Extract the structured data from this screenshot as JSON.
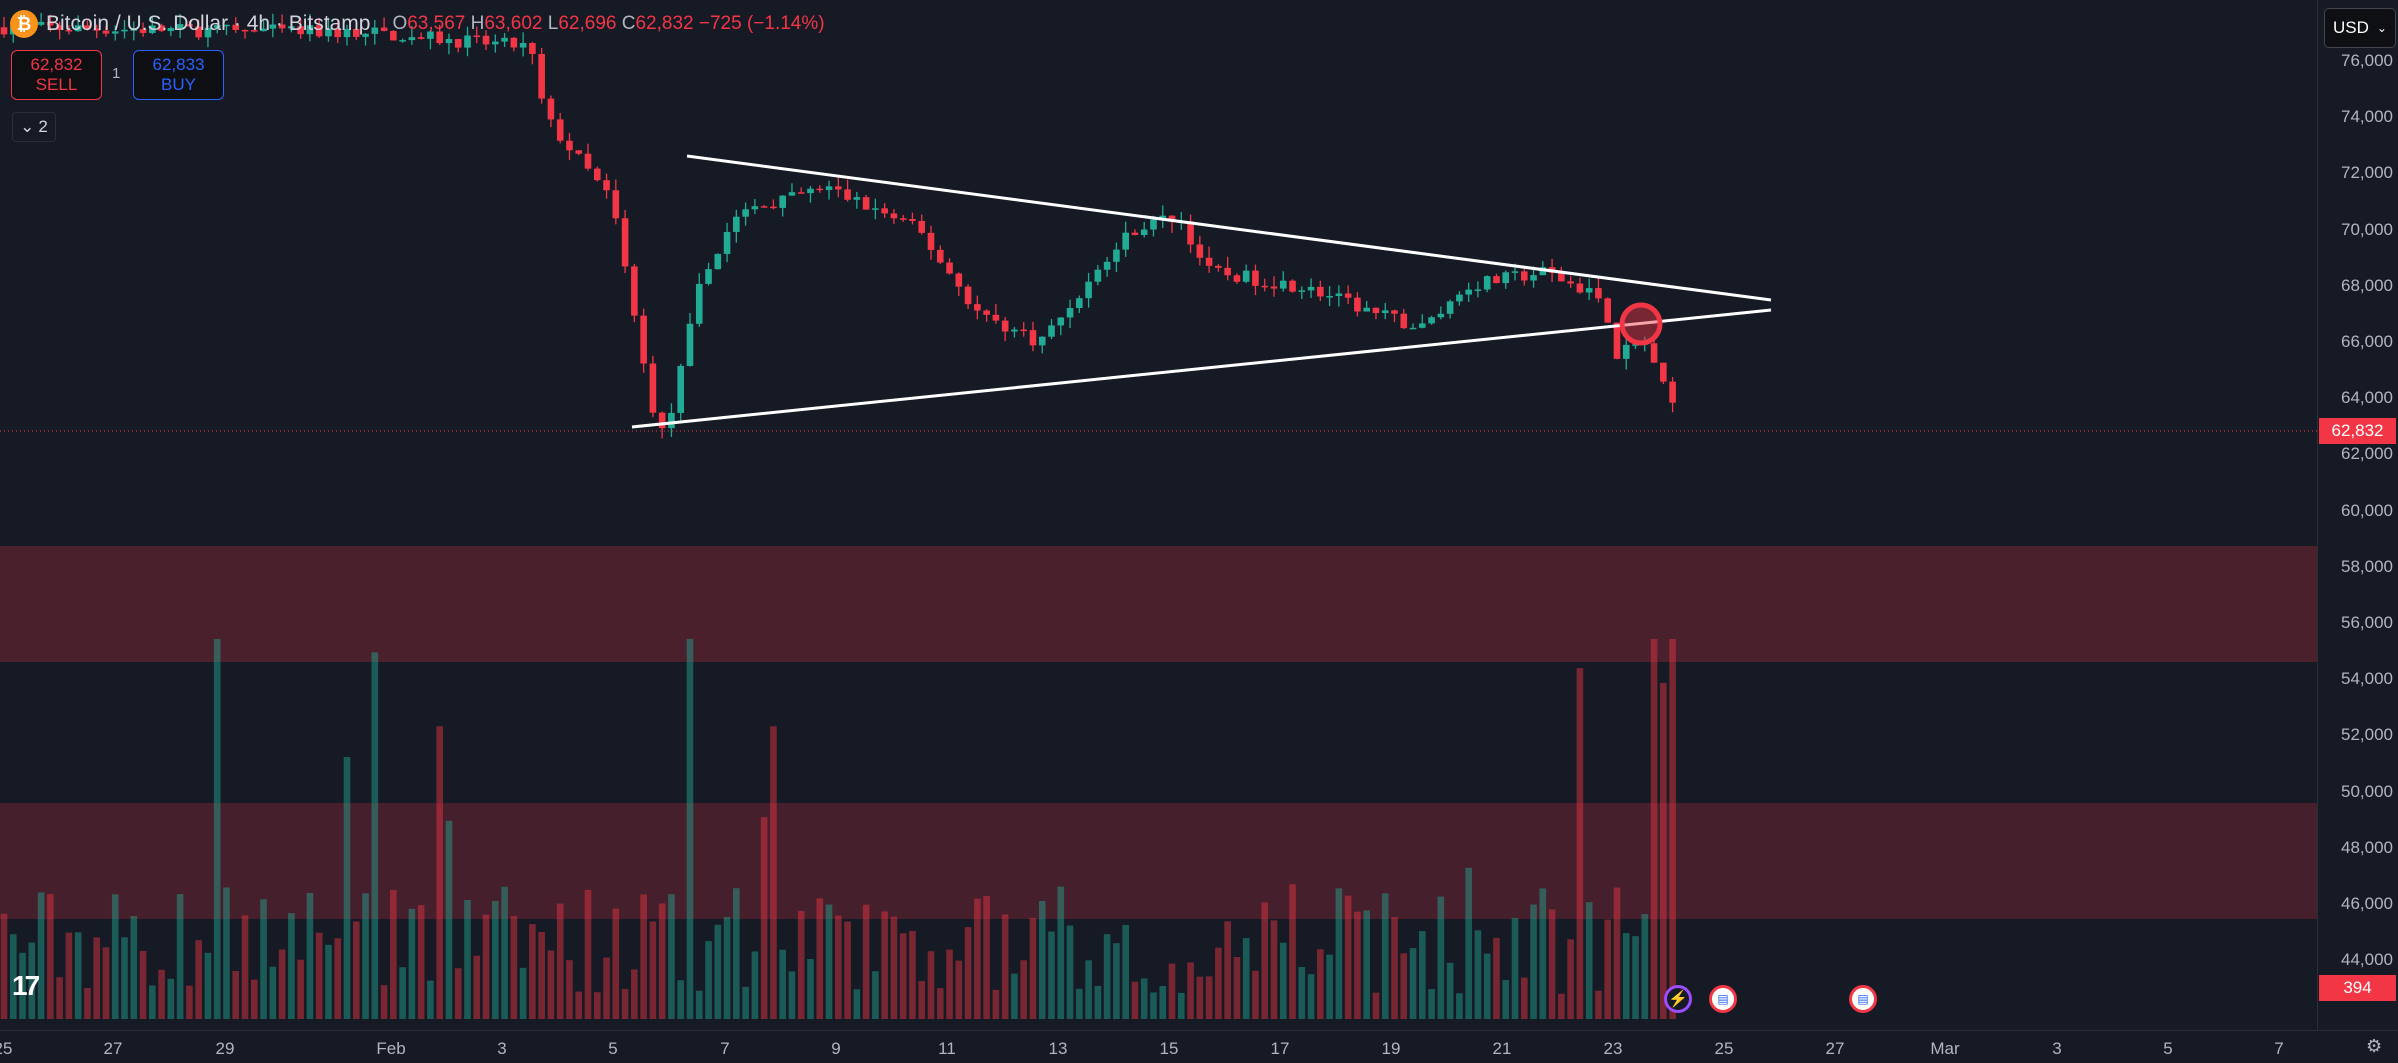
{
  "header": {
    "symbol_icon": "bitcoin-icon",
    "title": "Bitcoin / U.S. Dollar · 4h · Bitstamp",
    "open_label": "O",
    "open": "63,567",
    "high_label": "H",
    "high": "63,602",
    "low_label": "L",
    "low": "62,696",
    "close_label": "C",
    "close": "62,832",
    "change": "−725 (−1.14%)"
  },
  "trade": {
    "sell_price": "62,832",
    "sell_label": "SELL",
    "spread": "1",
    "buy_price": "62,833",
    "buy_label": "BUY"
  },
  "indicators_collapse": {
    "count": "2"
  },
  "currency": "USD",
  "price_axis": [
    "76,000",
    "74,000",
    "72,000",
    "70,000",
    "68,000",
    "66,000",
    "64,000",
    "62,000",
    "60,000",
    "58,000",
    "56,000",
    "54,000",
    "52,000",
    "50,000",
    "48,000",
    "46,000",
    "44,000"
  ],
  "last_price_label": "62,832",
  "volume_label": "394",
  "time_axis": [
    "25",
    "27",
    "29",
    "Feb",
    "3",
    "5",
    "7",
    "9",
    "11",
    "13",
    "15",
    "17",
    "19",
    "21",
    "23",
    "25",
    "27",
    "Mar",
    "3",
    "5",
    "7"
  ],
  "colors": {
    "up": "#22ab94",
    "down": "#f23645",
    "zone": "#4a202c",
    "background": "#161a25"
  }
}
